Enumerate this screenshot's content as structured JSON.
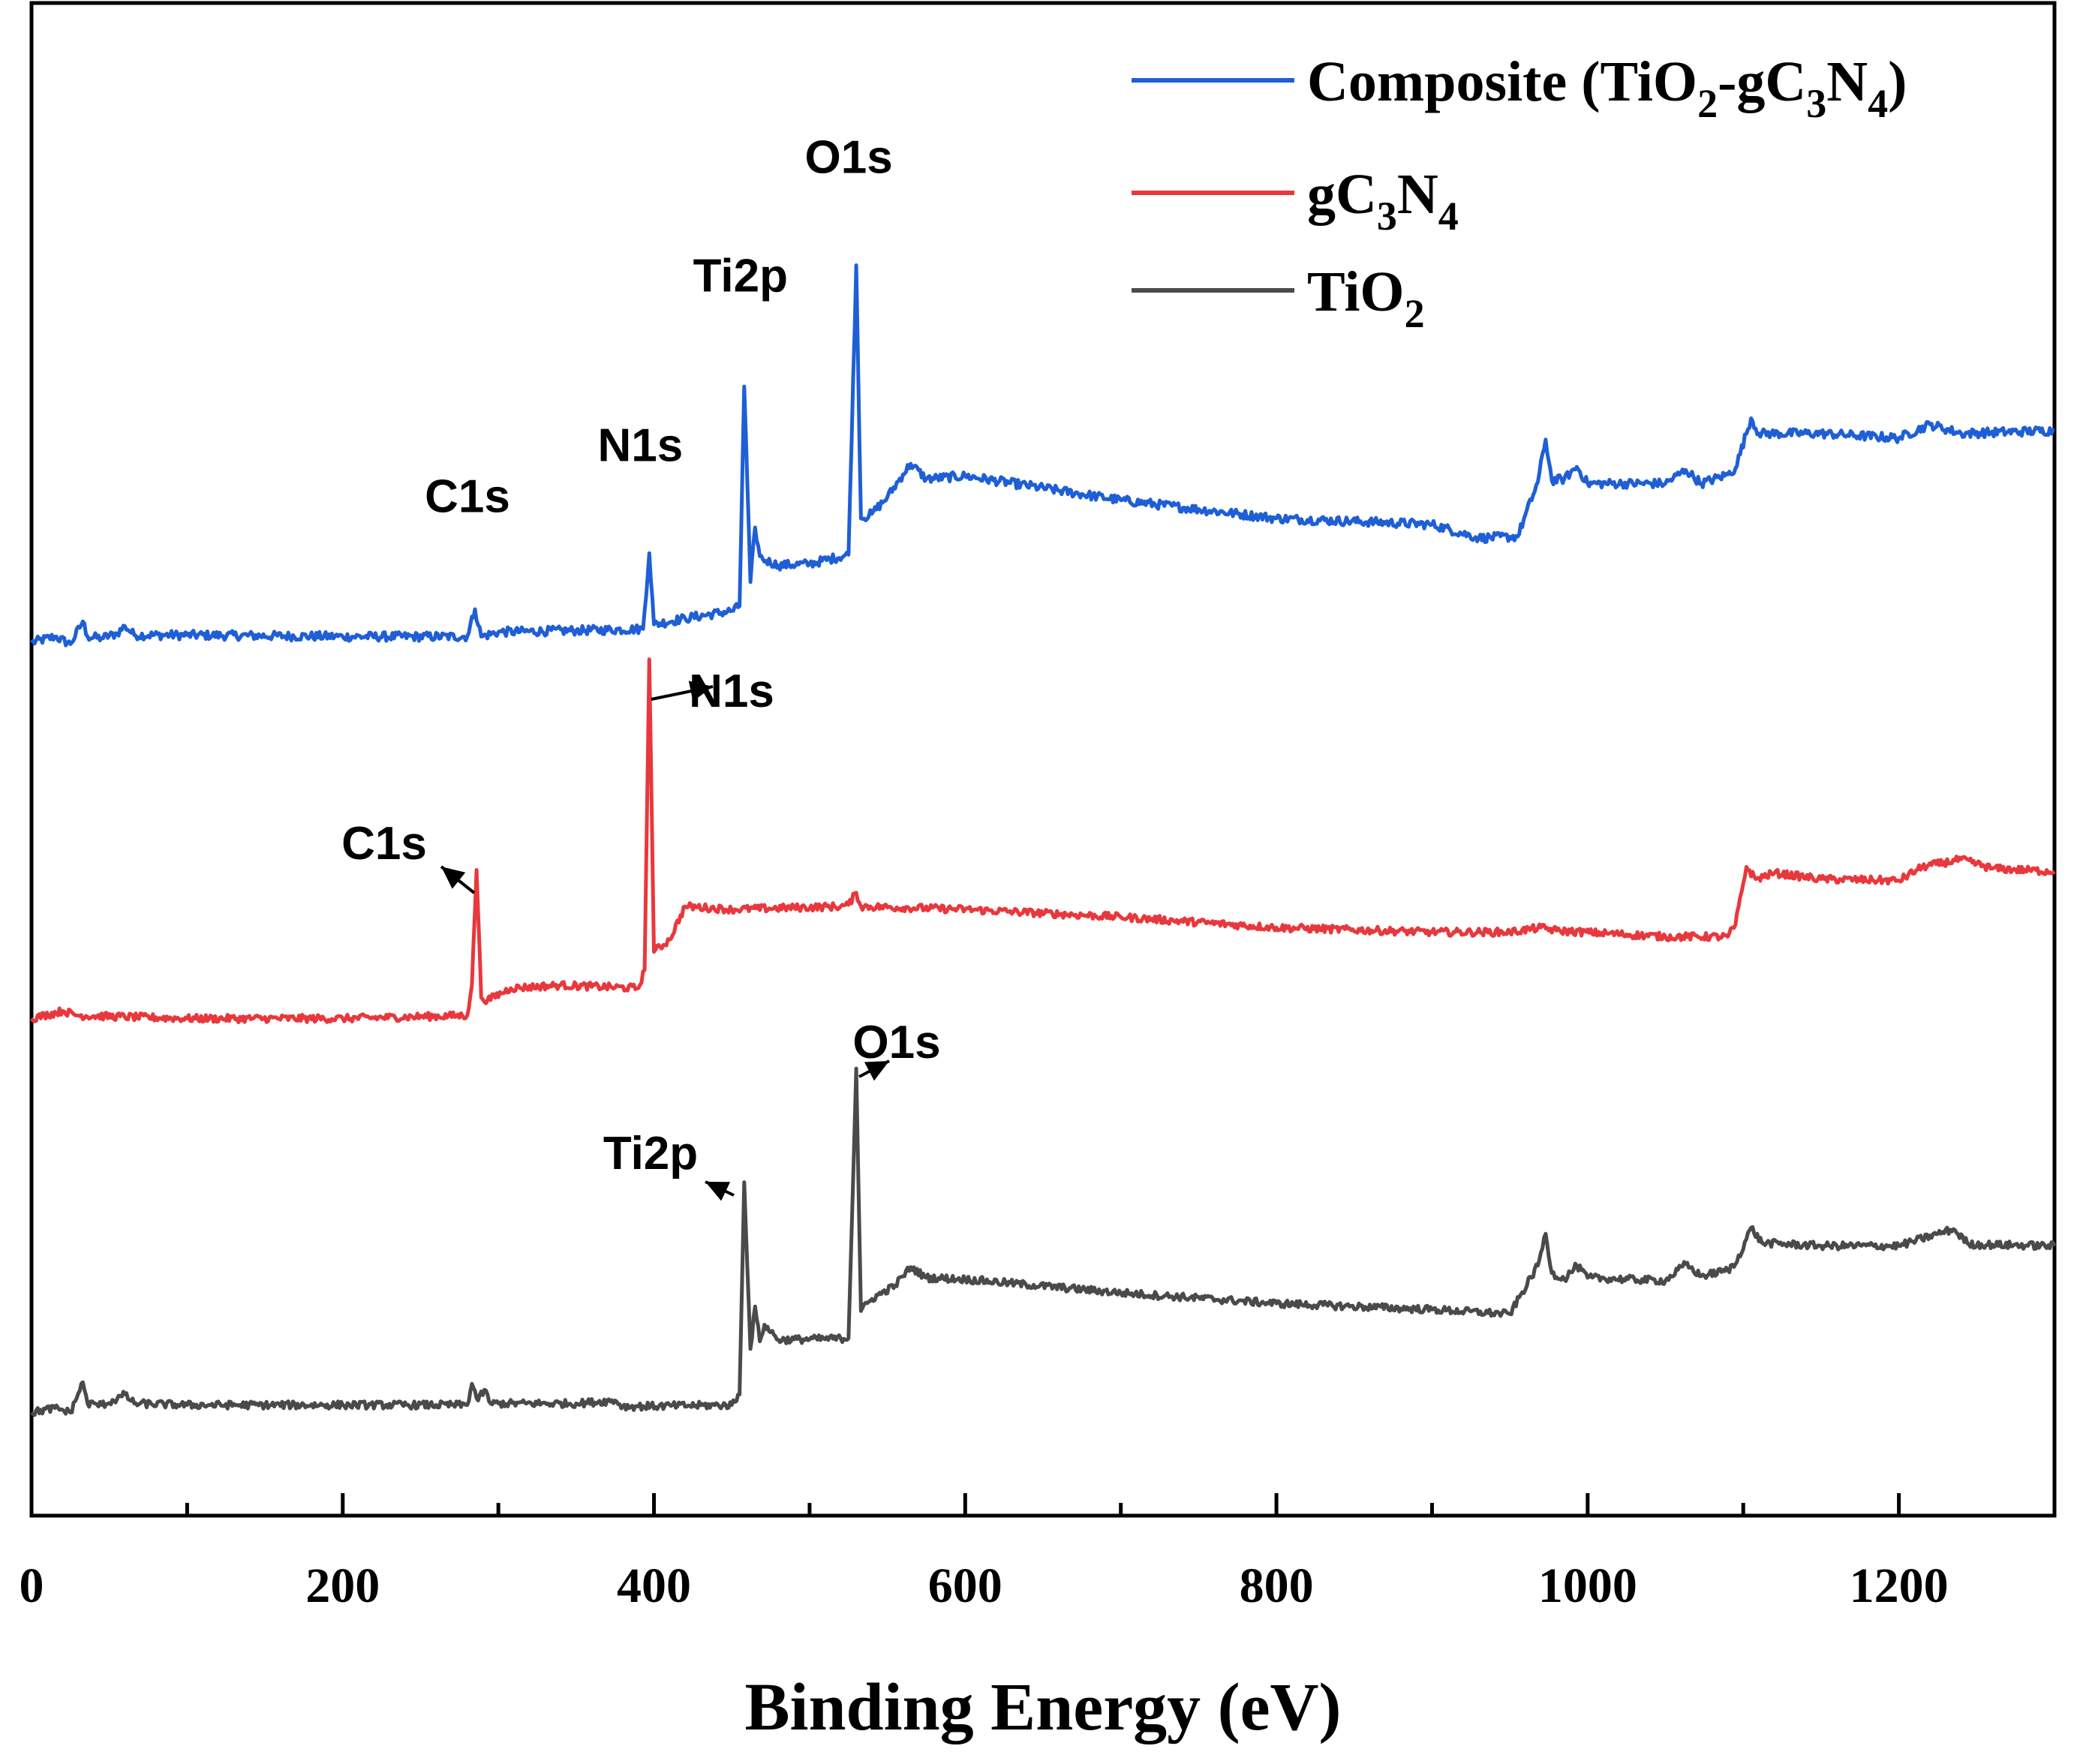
{
  "chart_data": {
    "type": "line",
    "title": "",
    "xlabel": "Binding Energy (eV)",
    "ylabel": "",
    "xlim": [
      0,
      1300
    ],
    "xticks": [
      "0",
      "200",
      "400",
      "600",
      "800",
      "1000",
      "1200"
    ],
    "xtick_values": [
      0,
      200,
      400,
      600,
      800,
      1000,
      1200
    ],
    "ylim": [
      0,
      100
    ],
    "grid": false,
    "legend_position": "top-right",
    "series": [
      {
        "name": "Composite (TiO2-gC3N4)",
        "legend_main": "Composite (TiO",
        "legend_sub1": "2",
        "legend_mid": "-gC",
        "legend_sub2": "3",
        "legend_mid2": "N",
        "legend_sub3": "4",
        "legend_end": ")",
        "color": "#1f5fd6",
        "baseline": 57.6,
        "noise": 0.3,
        "points": [
          [
            0,
            57.6
          ],
          [
            15,
            58.0
          ],
          [
            25,
            57.5
          ],
          [
            33,
            59.0
          ],
          [
            36,
            58.0
          ],
          [
            45,
            57.9
          ],
          [
            55,
            58.2
          ],
          [
            60,
            58.7
          ],
          [
            66,
            58.1
          ],
          [
            100,
            58.1
          ],
          [
            200,
            58.0
          ],
          [
            280,
            58.0
          ],
          [
            285,
            59.8
          ],
          [
            289,
            58.0
          ],
          [
            300,
            58.3
          ],
          [
            350,
            58.4
          ],
          [
            393,
            58.5
          ],
          [
            397,
            63.5
          ],
          [
            400,
            58.8
          ],
          [
            420,
            59.2
          ],
          [
            450,
            59.7
          ],
          [
            455,
            60.0
          ],
          [
            458,
            74.5
          ],
          [
            462,
            61.6
          ],
          [
            465,
            65.2
          ],
          [
            468,
            63.3
          ],
          [
            470,
            63.1
          ],
          [
            480,
            62.7
          ],
          [
            500,
            62.8
          ],
          [
            525,
            63.4
          ],
          [
            530,
            82.5
          ],
          [
            533,
            65.8
          ],
          [
            540,
            66.1
          ],
          [
            550,
            67.2
          ],
          [
            560,
            68.7
          ],
          [
            565,
            69.4
          ],
          [
            575,
            68.4
          ],
          [
            600,
            68.6
          ],
          [
            700,
            67.0
          ],
          [
            800,
            65.8
          ],
          [
            900,
            65.4
          ],
          [
            930,
            64.5
          ],
          [
            955,
            64.6
          ],
          [
            968,
            68.2
          ],
          [
            973,
            71.0
          ],
          [
            977,
            68.3
          ],
          [
            985,
            68.4
          ],
          [
            993,
            69.2
          ],
          [
            1000,
            68.1
          ],
          [
            1050,
            68.1
          ],
          [
            1063,
            69.0
          ],
          [
            1073,
            68.1
          ],
          [
            1090,
            68.7
          ],
          [
            1095,
            69.1
          ],
          [
            1105,
            72.4
          ],
          [
            1110,
            71.4
          ],
          [
            1150,
            71.4
          ],
          [
            1200,
            71.1
          ],
          [
            1220,
            72.0
          ],
          [
            1240,
            71.4
          ],
          [
            1300,
            71.6
          ]
        ]
      },
      {
        "name": "gC3N4",
        "legend_main": "gC",
        "legend_sub1": "3",
        "legend_mid": "N",
        "legend_sub2": "4",
        "color": "#e8383d",
        "baseline": 32.8,
        "noise": 0.25,
        "points": [
          [
            0,
            32.8
          ],
          [
            20,
            33.3
          ],
          [
            30,
            33.0
          ],
          [
            100,
            32.8
          ],
          [
            200,
            32.8
          ],
          [
            280,
            33.0
          ],
          [
            283,
            35.0
          ],
          [
            286,
            42.6
          ],
          [
            289,
            34.2
          ],
          [
            293,
            34.0
          ],
          [
            308,
            34.8
          ],
          [
            340,
            35.0
          ],
          [
            390,
            34.8
          ],
          [
            394,
            36.0
          ],
          [
            397,
            56.5
          ],
          [
            400,
            37.2
          ],
          [
            410,
            38.0
          ],
          [
            420,
            40.2
          ],
          [
            450,
            40.0
          ],
          [
            520,
            40.2
          ],
          [
            525,
            40.3
          ],
          [
            530,
            41.1
          ],
          [
            533,
            40.2
          ],
          [
            600,
            40.0
          ],
          [
            700,
            39.5
          ],
          [
            800,
            38.8
          ],
          [
            900,
            38.5
          ],
          [
            950,
            38.5
          ],
          [
            970,
            38.8
          ],
          [
            980,
            38.6
          ],
          [
            1050,
            38.2
          ],
          [
            1090,
            38.2
          ],
          [
            1095,
            39.0
          ],
          [
            1102,
            42.8
          ],
          [
            1108,
            42.0
          ],
          [
            1120,
            42.4
          ],
          [
            1150,
            42.0
          ],
          [
            1200,
            41.9
          ],
          [
            1215,
            42.8
          ],
          [
            1240,
            43.3
          ],
          [
            1260,
            42.7
          ],
          [
            1300,
            42.5
          ]
        ]
      },
      {
        "name": "TiO2",
        "legend_main": "TiO",
        "legend_sub1": "2",
        "color": "#4a4a4a",
        "baseline": 6.8,
        "noise": 0.25,
        "points": [
          [
            0,
            6.8
          ],
          [
            15,
            7.1
          ],
          [
            25,
            6.8
          ],
          [
            33,
            8.8
          ],
          [
            36,
            7.4
          ],
          [
            45,
            7.3
          ],
          [
            55,
            7.7
          ],
          [
            60,
            8.0
          ],
          [
            66,
            7.4
          ],
          [
            100,
            7.3
          ],
          [
            200,
            7.3
          ],
          [
            280,
            7.3
          ],
          [
            283,
            8.7
          ],
          [
            287,
            7.6
          ],
          [
            291,
            8.3
          ],
          [
            295,
            7.4
          ],
          [
            350,
            7.4
          ],
          [
            375,
            7.6
          ],
          [
            380,
            7.2
          ],
          [
            450,
            7.3
          ],
          [
            455,
            8.0
          ],
          [
            458,
            22.0
          ],
          [
            462,
            11.0
          ],
          [
            465,
            13.8
          ],
          [
            468,
            11.5
          ],
          [
            471,
            12.6
          ],
          [
            480,
            11.6
          ],
          [
            525,
            11.7
          ],
          [
            530,
            29.5
          ],
          [
            533,
            13.5
          ],
          [
            540,
            14.3
          ],
          [
            555,
            15.2
          ],
          [
            565,
            16.4
          ],
          [
            575,
            15.7
          ],
          [
            600,
            15.6
          ],
          [
            700,
            14.7
          ],
          [
            800,
            14.0
          ],
          [
            900,
            13.6
          ],
          [
            950,
            13.3
          ],
          [
            968,
            16.5
          ],
          [
            973,
            18.6
          ],
          [
            977,
            16.0
          ],
          [
            985,
            15.6
          ],
          [
            993,
            16.5
          ],
          [
            1000,
            15.7
          ],
          [
            1050,
            15.5
          ],
          [
            1063,
            16.6
          ],
          [
            1073,
            15.8
          ],
          [
            1090,
            16.2
          ],
          [
            1095,
            16.6
          ],
          [
            1105,
            19.0
          ],
          [
            1112,
            18.0
          ],
          [
            1150,
            17.8
          ],
          [
            1200,
            17.8
          ],
          [
            1225,
            18.6
          ],
          [
            1235,
            18.9
          ],
          [
            1245,
            17.9
          ],
          [
            1300,
            17.8
          ]
        ]
      }
    ],
    "annotations": [
      {
        "text": "C1s",
        "series": "Composite (TiO2-gC3N4)",
        "x": 285,
        "y": 63.5,
        "arrow": false
      },
      {
        "text": "N1s",
        "series": "Composite (TiO2-gC3N4)",
        "x": 397,
        "y": 67.6,
        "arrow": false
      },
      {
        "text": "Ti2p",
        "series": "Composite (TiO2-gC3N4)",
        "x": 458,
        "y": 78.3,
        "arrow": false
      },
      {
        "text": "O1s",
        "series": "Composite (TiO2-gC3N4)",
        "x": 530,
        "y": 86.6,
        "arrow": false
      },
      {
        "text": "N1s",
        "series": "gC3N4",
        "x": 397,
        "y": 56.5,
        "arrow": true
      },
      {
        "text": "C1s",
        "series": "gC3N4",
        "x": 286,
        "y": 42.6,
        "arrow": true
      },
      {
        "text": "O1s",
        "series": "TiO2",
        "x": 530,
        "y": 29.5,
        "arrow": true
      },
      {
        "text": "Ti2p",
        "series": "TiO2",
        "x": 458,
        "y": 22.0,
        "arrow": true
      }
    ]
  }
}
